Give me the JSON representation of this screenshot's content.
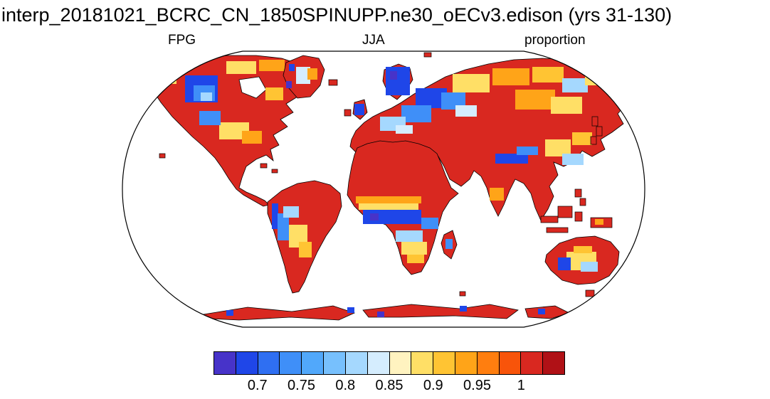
{
  "title": "interp_20181021_BCRC_CN_1850SPINUPP.ne30_oECv3.edison (yrs 31-130)",
  "labels": {
    "left": "FPG",
    "center": "JJA",
    "right": "proportion"
  },
  "chart_data": {
    "type": "heatmap",
    "subtype": "global-map-robinson-projection",
    "title": "interp_20181021_BCRC_CN_1850SPINUPP.ne30_oECv3.edison (yrs 31-130)",
    "variable": "FPG",
    "season": "JJA",
    "units": "proportion",
    "layout": {
      "ocean_color": "#ffffff",
      "coastline_color": "#000000",
      "outline_color": "#000000",
      "legend_position": "bottom-horizontal-colorbar",
      "grid": false
    },
    "colorbar": {
      "min": 0.65,
      "max": 1.05,
      "step": 0.025,
      "colors": [
        "#4733c9",
        "#1f46e8",
        "#2f6ff2",
        "#3f8ff8",
        "#51a8fb",
        "#77c0fd",
        "#a5d8fe",
        "#d5edfe",
        "#fff3c0",
        "#ffdf66",
        "#ffc433",
        "#ffa418",
        "#ff7e0f",
        "#f8540a",
        "#d92820",
        "#b01116"
      ],
      "tick_labels": [
        "0.7",
        "0.75",
        "0.8",
        "0.85",
        "0.9",
        "0.95",
        "1"
      ],
      "tick_positions": [
        0.125,
        0.25,
        0.375,
        0.5,
        0.625,
        0.75,
        0.875
      ]
    },
    "palette": {
      "purple": "#4733c9",
      "blue": "#1f46e8",
      "midblue": "#3f8ff8",
      "lightblue": "#a5d8fe",
      "paleblue": "#d5edfe",
      "paleyellow": "#fff3c0",
      "yellow": "#ffdf66",
      "amber": "#ffc433",
      "orange": "#ffa418",
      "deeporange": "#ff7e0f",
      "red": "#d92820",
      "darkred": "#b01116"
    },
    "regions": [
      {
        "region": "Sahara / Middle East / Central Asia",
        "proportion": "~0.975-1.0",
        "color": "red"
      },
      {
        "region": "Equatorial Central Africa",
        "proportion": "~0.7",
        "color": "blue"
      },
      {
        "region": "Scandinavia / Eastern Europe",
        "proportion": "~0.7-0.8",
        "color": "blue"
      },
      {
        "region": "Western Canada / Alaska interior",
        "proportion": "~0.75-0.85",
        "color": "blue / light blue"
      },
      {
        "region": "Central United States",
        "proportion": "~0.85-0.95",
        "color": "yellow / orange"
      },
      {
        "region": "Eastern South America (Amazon, Brazil)",
        "proportion": "~1.0",
        "color": "red"
      },
      {
        "region": "Andes / western South America",
        "proportion": "~0.7-0.85",
        "color": "blue / yellow"
      },
      {
        "region": "Siberia",
        "proportion": "~0.85-0.95",
        "color": "yellow / orange"
      },
      {
        "region": "India / Southeast Asia coasts",
        "proportion": "~0.95-1.0",
        "color": "red"
      },
      {
        "region": "Central Australia",
        "proportion": "~0.8-0.9",
        "color": "yellow / blue"
      },
      {
        "region": "Australian coasts",
        "proportion": "~1.0",
        "color": "red"
      },
      {
        "region": "Antarctic coastal band",
        "proportion": "~0.95-1.0 with blue patches",
        "color": "red / blue"
      }
    ]
  }
}
